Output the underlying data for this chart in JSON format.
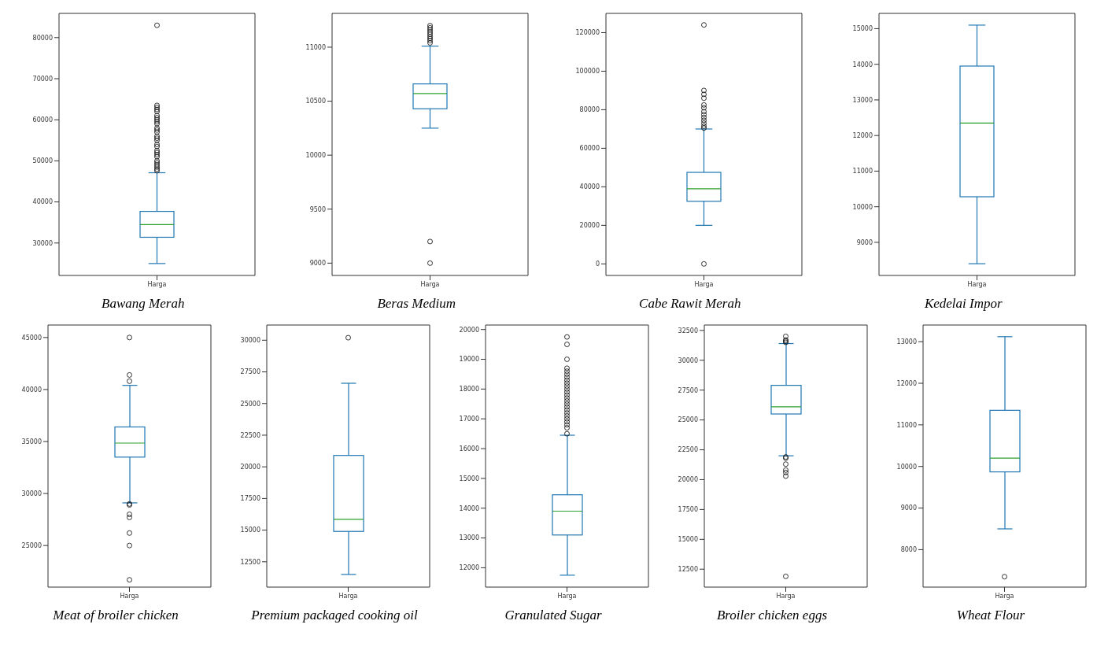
{
  "chart_data": [
    {
      "type": "box",
      "title": "Bawang Merah",
      "categories": [
        "Harga"
      ],
      "ylim": [
        22100,
        85900
      ],
      "yticks": [
        30000,
        40000,
        50000,
        60000,
        70000,
        80000
      ],
      "series": [
        {
          "color": "#1f77b4",
          "boxes": [
            {
              "low": 25000,
              "q1": 31400,
              "median": 34500,
              "q3": 37700,
              "high": 47100,
              "outliers": [
                47600,
                48000,
                48500,
                49000,
                49500,
                50000,
                51000,
                51500,
                52000,
                52500,
                53500,
                54000,
                55000,
                55500,
                56000,
                57000,
                57500,
                58000,
                59000,
                59500,
                60000,
                60500,
                61000,
                62000,
                62500,
                63000,
                63500,
                83000
              ]
            }
          ]
        }
      ]
    },
    {
      "type": "box",
      "title": "Beras Medium",
      "categories": [
        "Harga"
      ],
      "ylim": [
        8886,
        11313
      ],
      "yticks": [
        9000,
        9500,
        10000,
        10500,
        11000
      ],
      "series": [
        {
          "color": "#1f77b4",
          "boxes": [
            {
              "low": 10250,
              "q1": 10430,
              "median": 10570,
              "q3": 10660,
              "high": 11010,
              "outliers": [
                9000,
                9200,
                11040,
                11060,
                11080,
                11100,
                11120,
                11140,
                11160,
                11180,
                11200
              ]
            }
          ]
        }
      ]
    },
    {
      "type": "box",
      "title": "Cabe Rawit Merah",
      "categories": [
        "Harga"
      ],
      "ylim": [
        -6000,
        130000
      ],
      "yticks": [
        0,
        20000,
        40000,
        60000,
        80000,
        100000,
        120000
      ],
      "series": [
        {
          "color": "#1f77b4",
          "boxes": [
            {
              "low": 20000,
              "q1": 32500,
              "median": 39000,
              "q3": 47500,
              "high": 70000,
              "outliers": [
                0,
                70500,
                71500,
                73000,
                74500,
                76000,
                77500,
                79000,
                81000,
                82500,
                86000,
                88000,
                90000,
                124000
              ]
            }
          ]
        }
      ]
    },
    {
      "type": "box",
      "title": "Kedelai Impor",
      "categories": [
        "Harga"
      ],
      "ylim": [
        8070,
        15430
      ],
      "yticks": [
        9000,
        10000,
        11000,
        12000,
        13000,
        14000,
        15000
      ],
      "series": [
        {
          "color": "#1f77b4",
          "boxes": [
            {
              "low": 8400,
              "q1": 10280,
              "median": 12350,
              "q3": 13950,
              "high": 15100
            }
          ]
        }
      ]
    },
    {
      "type": "box",
      "title": "Meat of broiler chicken",
      "categories": [
        "Harga"
      ],
      "ylim": [
        21000,
        46200
      ],
      "yticks": [
        25000,
        30000,
        35000,
        40000,
        45000
      ],
      "series": [
        {
          "color": "#1f77b4",
          "boxes": [
            {
              "low": 29100,
              "q1": 33500,
              "median": 34850,
              "q3": 36400,
              "high": 40400,
              "outliers": [
                21700,
                25000,
                26200,
                27700,
                28000,
                28900,
                29000,
                40800,
                41400,
                45000
              ]
            }
          ]
        }
      ]
    },
    {
      "type": "box",
      "title": "Premium packaged cooking oil",
      "categories": [
        "Harga"
      ],
      "ylim": [
        10500,
        31200
      ],
      "yticks": [
        12500,
        15000,
        17500,
        20000,
        22500,
        25000,
        27500,
        30000
      ],
      "series": [
        {
          "color": "#1f77b4",
          "boxes": [
            {
              "low": 11500,
              "q1": 14900,
              "median": 15850,
              "q3": 20900,
              "high": 26600,
              "outliers": [
                30200
              ]
            }
          ]
        }
      ]
    },
    {
      "type": "box",
      "title": "Granulated Sugar",
      "categories": [
        "Harga"
      ],
      "ylim": [
        11350,
        20150
      ],
      "yticks": [
        12000,
        13000,
        14000,
        15000,
        16000,
        17000,
        18000,
        19000,
        20000
      ],
      "series": [
        {
          "color": "#1f77b4",
          "boxes": [
            {
              "low": 11750,
              "q1": 13100,
              "median": 13900,
              "q3": 14450,
              "high": 16450,
              "outliers": [
                16500,
                16700,
                16800,
                16900,
                17000,
                17100,
                17200,
                17300,
                17400,
                17500,
                17600,
                17700,
                17800,
                17900,
                18000,
                18100,
                18200,
                18300,
                18400,
                18500,
                18600,
                18700,
                19000,
                19500,
                19750
              ]
            }
          ]
        }
      ]
    },
    {
      "type": "box",
      "title": "Broiler chicken eggs",
      "categories": [
        "Harga"
      ],
      "ylim": [
        11000,
        32950
      ],
      "yticks": [
        12500,
        15000,
        17500,
        20000,
        22500,
        25000,
        27500,
        30000,
        32500
      ],
      "series": [
        {
          "color": "#1f77b4",
          "boxes": [
            {
              "low": 22000,
              "q1": 25500,
              "median": 26100,
              "q3": 27900,
              "high": 31400,
              "outliers": [
                11900,
                20300,
                20600,
                20800,
                21300,
                21800,
                21900,
                31500,
                31600,
                31700,
                32000
              ]
            }
          ]
        }
      ]
    },
    {
      "type": "box",
      "title": "Wheat Flour",
      "categories": [
        "Harga"
      ],
      "ylim": [
        7100,
        13400
      ],
      "yticks": [
        8000,
        9000,
        10000,
        11000,
        12000,
        13000
      ],
      "series": [
        {
          "color": "#1f77b4",
          "boxes": [
            {
              "low": 8500,
              "q1": 9870,
              "median": 10200,
              "q3": 11350,
              "high": 13120,
              "outliers": [
                7350
              ]
            }
          ]
        }
      ]
    }
  ]
}
